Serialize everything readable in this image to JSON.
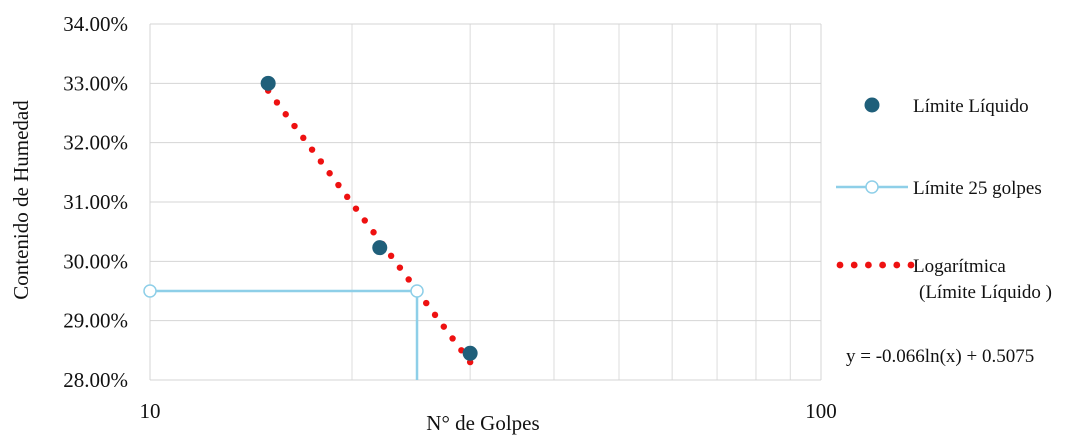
{
  "chart_data": {
    "type": "scatter",
    "x_scale": "log",
    "xlim": [
      10,
      100
    ],
    "ylim": [
      0.28,
      0.34
    ],
    "xlabel": "N° de Golpes",
    "ylabel": "Contenido de Humedad",
    "x_tick_labels": [
      "10",
      "100"
    ],
    "y_tick_labels": [
      "28.00%",
      "29.00%",
      "30.00%",
      "31.00%",
      "32.00%",
      "33.00%",
      "34.00%"
    ],
    "y_ticks": [
      0.28,
      0.29,
      0.3,
      0.31,
      0.32,
      0.33,
      0.34
    ],
    "grid": true,
    "legend_position": "right",
    "series": [
      {
        "name": "Límite Líquido",
        "kind": "markers",
        "color": "#1f5f7a",
        "points": [
          {
            "x": 15,
            "y": 0.33
          },
          {
            "x": 22,
            "y": 0.3023
          },
          {
            "x": 30,
            "y": 0.2845
          }
        ]
      },
      {
        "name": "Límite 25 golpes",
        "kind": "line",
        "color": "#8ecfe8",
        "points": [
          {
            "x": 10,
            "y": 0.295
          },
          {
            "x": 25,
            "y": 0.295
          },
          {
            "x": 25,
            "y": 0.28
          }
        ]
      },
      {
        "name": "Logarítmica",
        "name_line2": "(Límite Líquido )",
        "kind": "trendline",
        "color": "#ee1111",
        "x_range": [
          15,
          30
        ]
      }
    ],
    "trendline_equation": "y = -0.066ln(x) + 0.5075"
  }
}
